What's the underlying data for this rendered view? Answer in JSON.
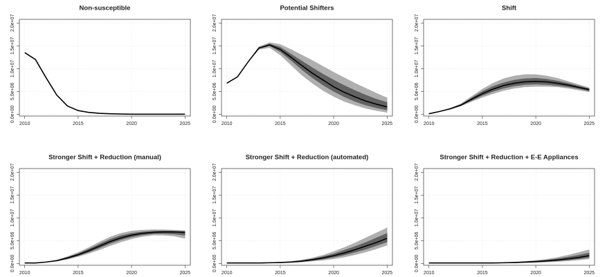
{
  "chart_data": [
    {
      "type": "line",
      "title": "Non-susceptible",
      "x": [
        2010,
        2011,
        2012,
        2013,
        2014,
        2015,
        2016,
        2017,
        2018,
        2019,
        2020,
        2021,
        2022,
        2023,
        2024,
        2025
      ],
      "xlim": [
        2009.5,
        2025.5
      ],
      "xticks": [
        2010,
        2015,
        2020,
        2025
      ],
      "ylim": [
        -400000,
        20800000
      ],
      "yticks": [
        {
          "value": 0,
          "label": "0.0e+00"
        },
        {
          "value": 5000000,
          "label": "5.0e+06"
        },
        {
          "value": 10000000,
          "label": "1.0e+07"
        },
        {
          "value": 15000000,
          "label": "1.5e+07"
        },
        {
          "value": 20000000,
          "label": "2.0e+07"
        }
      ],
      "grid": true,
      "series": [
        {
          "color": "#000000",
          "values": [
            13500000.0,
            12000000.0,
            8000000.0,
            4200000.0,
            1800000.0,
            800000.0,
            400000.0,
            200000.0,
            100000.0,
            50000.0,
            0,
            0,
            0,
            0,
            0,
            0
          ]
        }
      ],
      "bands": []
    },
    {
      "type": "line",
      "title": "Potential Shifters",
      "x": [
        2010,
        2011,
        2012,
        2013,
        2014,
        2015,
        2016,
        2017,
        2018,
        2019,
        2020,
        2021,
        2022,
        2023,
        2024,
        2025
      ],
      "xlim": [
        2009.5,
        2025.5
      ],
      "xticks": [
        2010,
        2015,
        2020,
        2025
      ],
      "ylim": [
        -400000,
        20800000
      ],
      "yticks": [
        {
          "value": 0,
          "label": "0.0e+00"
        },
        {
          "value": 5000000,
          "label": "5.0e+06"
        },
        {
          "value": 10000000,
          "label": "1.0e+07"
        },
        {
          "value": 15000000,
          "label": "1.5e+07"
        },
        {
          "value": 20000000,
          "label": "2.0e+07"
        }
      ],
      "grid": true,
      "series": [
        {
          "color": "#000000",
          "values": [
            6800000.0,
            8200000.0,
            11500000.0,
            14500000.0,
            15200000.0,
            14200000.0,
            12500000.0,
            10700000.0,
            9000000.0,
            7500000.0,
            6000000.0,
            4800000.0,
            3800000.0,
            2900000.0,
            2200000.0,
            1600000.0
          ]
        }
      ],
      "bands": [
        {
          "color": "#a6a6a6",
          "upper": [
            6800000.0,
            8200000.0,
            11500000.0,
            14800000.0,
            15700000.0,
            15300000.0,
            14200000.0,
            13000000.0,
            11800000.0,
            10500000.0,
            9200000.0,
            8000000.0,
            6800000.0,
            5700000.0,
            4600000.0,
            3600000.0
          ],
          "lower": [
            6800000.0,
            8200000.0,
            11500000.0,
            14200000.0,
            14600000.0,
            13000000.0,
            10800000.0,
            8600000.0,
            6800000.0,
            5200000.0,
            3900000.0,
            2800000.0,
            2000000.0,
            1300000.0,
            800000.0,
            400000.0
          ]
        },
        {
          "color": "#5a5a5a",
          "upper": [
            6800000.0,
            8200000.0,
            11500000.0,
            14600000.0,
            15400000.0,
            14700000.0,
            13200000.0,
            11700000.0,
            10200000.0,
            8800000.0,
            7500000.0,
            6300000.0,
            5200000.0,
            4200000.0,
            3300000.0,
            2600000.0
          ],
          "lower": [
            6800000.0,
            8200000.0,
            11500000.0,
            14400000.0,
            15000000.0,
            13700000.0,
            11800000.0,
            9800000.0,
            8000000.0,
            6400000.0,
            5000000.0,
            3800000.0,
            2800000.0,
            2000000.0,
            1400000.0,
            900000.0
          ]
        }
      ]
    },
    {
      "type": "line",
      "title": "Shift",
      "x": [
        2010,
        2011,
        2012,
        2013,
        2014,
        2015,
        2016,
        2017,
        2018,
        2019,
        2020,
        2021,
        2022,
        2023,
        2024,
        2025
      ],
      "xlim": [
        2009.5,
        2025.5
      ],
      "xticks": [
        2010,
        2015,
        2020,
        2025
      ],
      "ylim": [
        -400000,
        20800000
      ],
      "yticks": [
        {
          "value": 0,
          "label": "0.0e+00"
        },
        {
          "value": 5000000,
          "label": "5.0e+06"
        },
        {
          "value": 10000000,
          "label": "1.0e+07"
        },
        {
          "value": 15000000,
          "label": "1.5e+07"
        },
        {
          "value": 20000000,
          "label": "2.0e+07"
        }
      ],
      "grid": true,
      "series": [
        {
          "color": "#000000",
          "values": [
            100000.0,
            600000.0,
            1200000.0,
            2000000.0,
            3300000.0,
            4500000.0,
            5500000.0,
            6300000.0,
            6800000.0,
            7100000.0,
            7200000.0,
            7100000.0,
            6800000.0,
            6400000.0,
            5900000.0,
            5400000.0
          ]
        }
      ],
      "bands": [
        {
          "color": "#a6a6a6",
          "upper": [
            100000.0,
            600000.0,
            1300000.0,
            2300000.0,
            3900000.0,
            5500000.0,
            6800000.0,
            7800000.0,
            8400000.0,
            8700000.0,
            8700000.0,
            8400000.0,
            7900000.0,
            7200000.0,
            6500000.0,
            5800000.0
          ],
          "lower": [
            100000.0,
            600000.0,
            1100000.0,
            1800000.0,
            2800000.0,
            3700000.0,
            4500000.0,
            5200000.0,
            5700000.0,
            6000000.0,
            6100000.0,
            6100000.0,
            6000000.0,
            5700000.0,
            5300000.0,
            4900000.0
          ]
        },
        {
          "color": "#5a5a5a",
          "upper": [
            100000.0,
            600000.0,
            1250000.0,
            2150000.0,
            3600000.0,
            5000000.0,
            6100000.0,
            6900000.0,
            7500000.0,
            7800000.0,
            7900000.0,
            7700000.0,
            7300000.0,
            6800000.0,
            6200000.0,
            5600000.0
          ],
          "lower": [
            100000.0,
            600000.0,
            1150000.0,
            1900000.0,
            3000000.0,
            4100000.0,
            5000000.0,
            5700000.0,
            6200000.0,
            6500000.0,
            6600000.0,
            6500000.0,
            6300000.0,
            6000000.0,
            5600000.0,
            5100000.0
          ]
        }
      ]
    },
    {
      "type": "line",
      "title": "Stronger Shift + Reduction (manual)",
      "x": [
        2010,
        2011,
        2012,
        2013,
        2014,
        2015,
        2016,
        2017,
        2018,
        2019,
        2020,
        2021,
        2022,
        2023,
        2024,
        2025
      ],
      "xlim": [
        2009.5,
        2025.5
      ],
      "xticks": [
        2010,
        2015,
        2020,
        2025
      ],
      "ylim": [
        -400000,
        20800000
      ],
      "yticks": [
        {
          "value": 0,
          "label": "0.0e+00"
        },
        {
          "value": 5000000,
          "label": "5.0e+06"
        },
        {
          "value": 10000000,
          "label": "1.0e+07"
        },
        {
          "value": 15000000,
          "label": "1.5e+07"
        },
        {
          "value": 20000000,
          "label": "2.0e+07"
        }
      ],
      "grid": true,
      "series": [
        {
          "color": "#000000",
          "values": [
            100000.0,
            100000.0,
            300000.0,
            600000.0,
            1200000.0,
            1900000.0,
            2800000.0,
            3800000.0,
            4800000.0,
            5600000.0,
            6200000.0,
            6600000.0,
            6800000.0,
            6900000.0,
            6900000.0,
            6800000.0
          ]
        }
      ],
      "bands": [
        {
          "color": "#a6a6a6",
          "upper": [
            100000.0,
            100000.0,
            350000.0,
            750000.0,
            1500000.0,
            2400000.0,
            3500000.0,
            4700000.0,
            5800000.0,
            6600000.0,
            7100000.0,
            7300000.0,
            7400000.0,
            7400000.0,
            7300000.0,
            7200000.0
          ],
          "lower": [
            100000.0,
            100000.0,
            250000.0,
            500000.0,
            900000.0,
            1500000.0,
            2200000.0,
            3000000.0,
            3900000.0,
            4700000.0,
            5400000.0,
            5900000.0,
            6200000.0,
            6200000.0,
            6000000.0,
            5500000.0
          ]
        },
        {
          "color": "#5a5a5a",
          "upper": [
            100000.0,
            100000.0,
            320000.0,
            680000.0,
            1350000.0,
            2150000.0,
            3150000.0,
            4250000.0,
            5300000.0,
            6100000.0,
            6600000.0,
            6900000.0,
            7100000.0,
            7150000.0,
            7100000.0,
            7000000.0
          ],
          "lower": [
            100000.0,
            100000.0,
            280000.0,
            550000.0,
            1050000.0,
            1700000.0,
            2500000.0,
            3400000.0,
            4400000.0,
            5200000.0,
            5800000.0,
            6250000.0,
            6500000.0,
            6550000.0,
            6450000.0,
            6200000.0
          ]
        }
      ]
    },
    {
      "type": "line",
      "title": "Stronger Shift + Reduction (automated)",
      "x": [
        2010,
        2011,
        2012,
        2013,
        2014,
        2015,
        2016,
        2017,
        2018,
        2019,
        2020,
        2021,
        2022,
        2023,
        2024,
        2025
      ],
      "xlim": [
        2009.5,
        2025.5
      ],
      "xticks": [
        2010,
        2015,
        2020,
        2025
      ],
      "ylim": [
        -400000,
        20800000
      ],
      "yticks": [
        {
          "value": 0,
          "label": "0.0e+00"
        },
        {
          "value": 5000000,
          "label": "5.0e+06"
        },
        {
          "value": 10000000,
          "label": "1.0e+07"
        },
        {
          "value": 15000000,
          "label": "1.5e+07"
        },
        {
          "value": 20000000,
          "label": "2.0e+07"
        }
      ],
      "grid": true,
      "series": [
        {
          "color": "#000000",
          "values": [
            100000.0,
            100000.0,
            100000.0,
            100000.0,
            150000.0,
            200000.0,
            300000.0,
            500000.0,
            800000.0,
            1200000.0,
            1700000.0,
            2300000.0,
            3000000.0,
            3800000.0,
            4600000.0,
            5500000.0
          ]
        }
      ],
      "bands": [
        {
          "color": "#a6a6a6",
          "upper": [
            100000.0,
            100000.0,
            100000.0,
            100000.0,
            200000.0,
            300000.0,
            450000.0,
            750000.0,
            1200000.0,
            1800000.0,
            2600000.0,
            3500000.0,
            4500000.0,
            5600000.0,
            6700000.0,
            7800000.0
          ],
          "lower": [
            100000.0,
            100000.0,
            100000.0,
            100000.0,
            100000.0,
            150000.0,
            200000.0,
            300000.0,
            500000.0,
            700000.0,
            1000000.0,
            1400000.0,
            1900000.0,
            2500000.0,
            3200000.0,
            4000000.0
          ]
        },
        {
          "color": "#5a5a5a",
          "upper": [
            100000.0,
            100000.0,
            100000.0,
            100000.0,
            180000.0,
            250000.0,
            380000.0,
            620000.0,
            1000000.0,
            1500000.0,
            2100000.0,
            2900000.0,
            3700000.0,
            4600000.0,
            5600000.0,
            6600000.0
          ],
          "lower": [
            100000.0,
            100000.0,
            100000.0,
            100000.0,
            120000.0,
            170000.0,
            250000.0,
            400000.0,
            650000.0,
            950000.0,
            1350000.0,
            1850000.0,
            2450000.0,
            3100000.0,
            3900000.0,
            4700000.0
          ]
        }
      ]
    },
    {
      "type": "line",
      "title": "Stronger Shift + Reduction + E-E Appliances",
      "x": [
        2010,
        2011,
        2012,
        2013,
        2014,
        2015,
        2016,
        2017,
        2018,
        2019,
        2020,
        2021,
        2022,
        2023,
        2024,
        2025
      ],
      "xlim": [
        2009.5,
        2025.5
      ],
      "xticks": [
        2010,
        2015,
        2020,
        2025
      ],
      "ylim": [
        -400000,
        20800000
      ],
      "yticks": [
        {
          "value": 0,
          "label": "0.0e+00"
        },
        {
          "value": 5000000,
          "label": "5.0e+06"
        },
        {
          "value": 10000000,
          "label": "1.0e+07"
        },
        {
          "value": 15000000,
          "label": "1.5e+07"
        },
        {
          "value": 20000000,
          "label": "2.0e+07"
        }
      ],
      "grid": true,
      "series": [
        {
          "color": "#000000",
          "values": [
            100000.0,
            100000.0,
            100000.0,
            100000.0,
            100000.0,
            100000.0,
            100000.0,
            150000.0,
            200000.0,
            300000.0,
            400000.0,
            550000.0,
            750000.0,
            1000000.0,
            1300000.0,
            1700000.0
          ]
        }
      ],
      "bands": [
        {
          "color": "#a6a6a6",
          "upper": [
            100000.0,
            100000.0,
            100000.0,
            100000.0,
            100000.0,
            100000.0,
            100000.0,
            200000.0,
            300000.0,
            450000.0,
            650000.0,
            900000.0,
            1300000.0,
            1800000.0,
            2400000.0,
            3000000.0
          ],
          "lower": [
            100000.0,
            100000.0,
            100000.0,
            100000.0,
            100000.0,
            100000.0,
            100000.0,
            100000.0,
            100000.0,
            150000.0,
            200000.0,
            300000.0,
            400000.0,
            550000.0,
            750000.0,
            1000000.0
          ]
        },
        {
          "color": "#5a5a5a",
          "upper": [
            100000.0,
            100000.0,
            100000.0,
            100000.0,
            100000.0,
            100000.0,
            100000.0,
            170000.0,
            250000.0,
            380000.0,
            520000.0,
            720000.0,
            1000000.0,
            1400000.0,
            1800000.0,
            2300000.0
          ],
          "lower": [
            100000.0,
            100000.0,
            100000.0,
            100000.0,
            100000.0,
            100000.0,
            100000.0,
            120000.0,
            150000.0,
            220000.0,
            300000.0,
            420000.0,
            570000.0,
            770000.0,
            1000000.0,
            1300000.0
          ]
        }
      ]
    }
  ]
}
